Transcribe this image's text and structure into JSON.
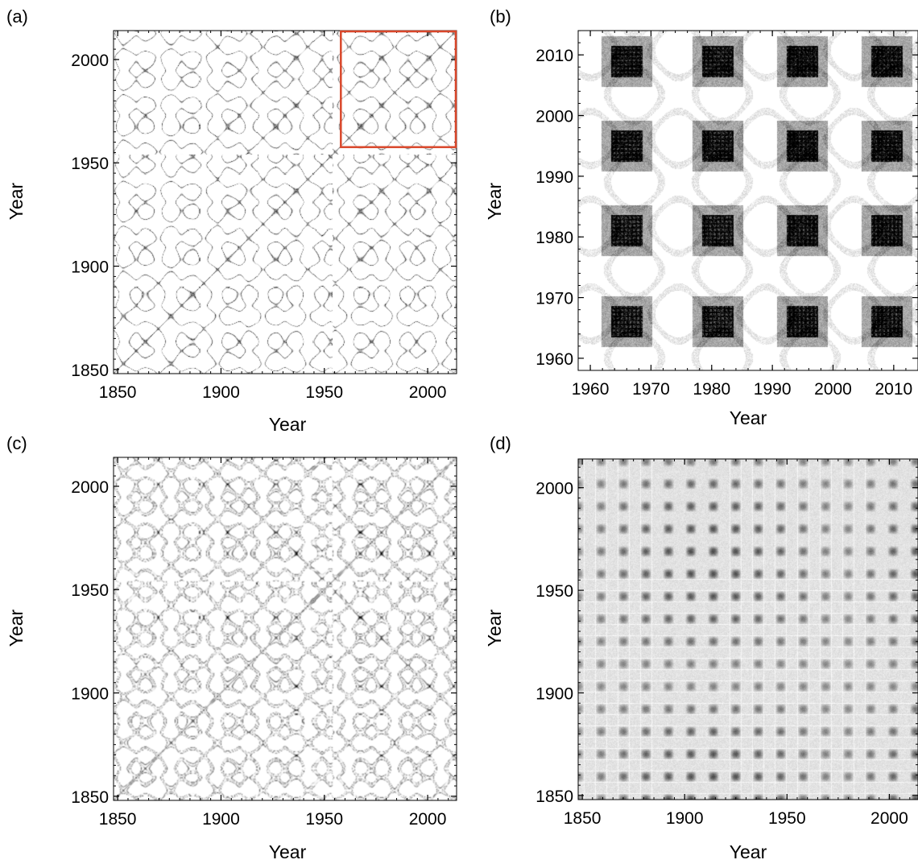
{
  "chart_data": [
    {
      "panel": "(a)",
      "type": "heatmap",
      "rendering": "recurrence-plot",
      "xlabel": "Year",
      "ylabel": "Year",
      "xlim": [
        1848,
        2014
      ],
      "ylim": [
        1848,
        2014
      ],
      "xticks": [
        1850,
        1900,
        1950,
        2000
      ],
      "yticks": [
        1850,
        1900,
        1950,
        2000
      ],
      "periods_years": [
        11.2,
        22
      ],
      "phase_break_year": 1954,
      "style": "light",
      "highlight_box": {
        "x": [
          1958,
          2014
        ],
        "y": [
          1958,
          2014
        ],
        "color": "#d9472b"
      }
    },
    {
      "panel": "(b)",
      "type": "heatmap",
      "rendering": "recurrence-plot",
      "xlabel": "Year",
      "ylabel": "Year",
      "xlim": [
        1958,
        2014
      ],
      "ylim": [
        1958,
        2014
      ],
      "xticks": [
        1960,
        1970,
        1980,
        1990,
        2000,
        2010
      ],
      "yticks": [
        1960,
        1970,
        1980,
        1990,
        2000,
        2010
      ],
      "dense_block_centers": [
        1966,
        1981,
        1995,
        2009
      ],
      "style": "blocks"
    },
    {
      "panel": "(c)",
      "type": "heatmap",
      "rendering": "recurrence-plot",
      "xlabel": "Year",
      "ylabel": "Year",
      "xlim": [
        1848,
        2014
      ],
      "ylim": [
        1848,
        2014
      ],
      "xticks": [
        1850,
        1900,
        1950,
        2000
      ],
      "yticks": [
        1850,
        1900,
        1950,
        2000
      ],
      "periods_years": [
        11.2,
        22
      ],
      "phase_break_year": 1954,
      "style": "contour-dark"
    },
    {
      "panel": "(d)",
      "type": "heatmap",
      "rendering": "recurrence-plot",
      "xlabel": "Year",
      "ylabel": "Year",
      "xlim": [
        1848,
        2014
      ],
      "ylim": [
        1848,
        2014
      ],
      "xticks": [
        1850,
        1900,
        1950,
        2000
      ],
      "yticks": [
        1850,
        1900,
        1950,
        2000
      ],
      "grid_period_years": 11,
      "style": "grey-grid"
    }
  ]
}
